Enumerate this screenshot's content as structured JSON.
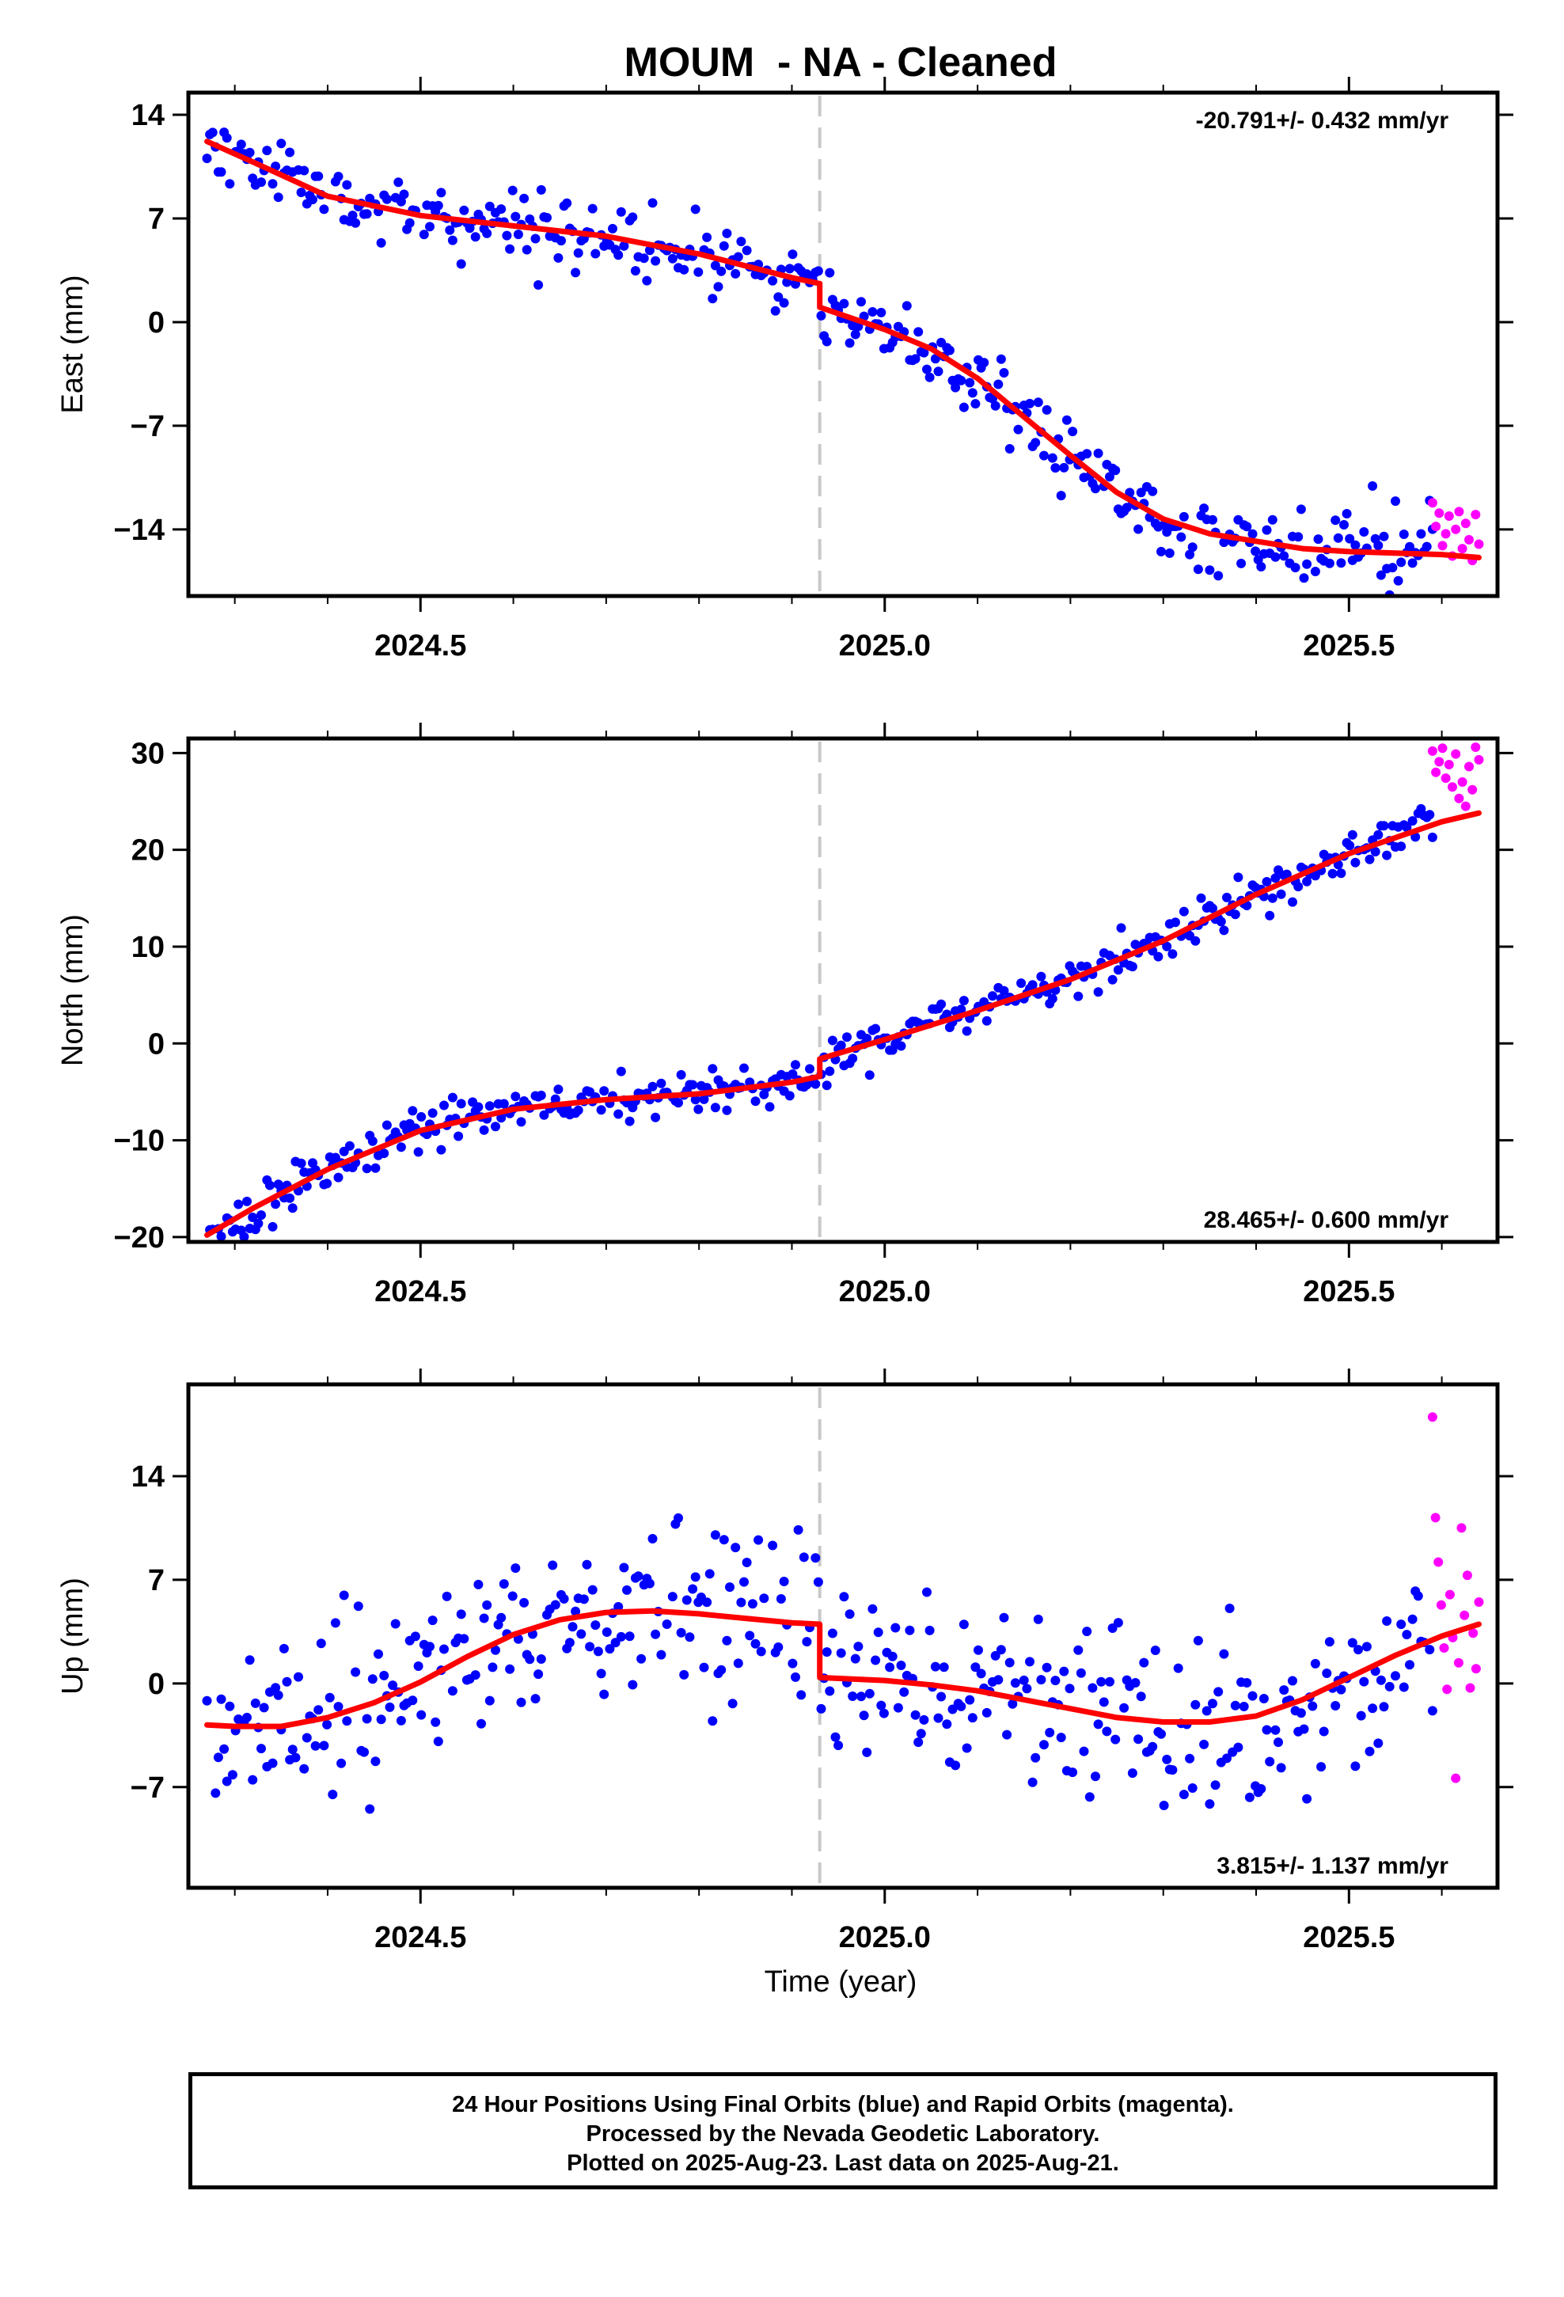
{
  "title": "MOUM  - NA - Cleaned",
  "colors": {
    "final": "#0000ff",
    "rapid": "#ff00ff",
    "model": "#ff0000",
    "event": "#c8c8c8"
  },
  "xlabel": "Time (year)",
  "footer": {
    "line1": "24 Hour Positions Using Final Orbits (blue) and Rapid Orbits (magenta).",
    "line2": "Processed by the Nevada Geodetic Laboratory.",
    "line3": "Plotted on 2025-Aug-23. Last data on 2025-Aug-21."
  },
  "chart_data": [
    {
      "type": "scatter",
      "component": "east",
      "ylabel": "East (mm)",
      "xlim": [
        2024.25,
        2025.66
      ],
      "ylim": [
        -18.5,
        15.5
      ],
      "xticks": [
        2024.5,
        2025.0,
        2025.5
      ],
      "xtick_labels": [
        "2024.5",
        "2025.0",
        "2025.5"
      ],
      "yticks": [
        14,
        7,
        0,
        -7,
        -14
      ],
      "ytick_labels": [
        "14",
        "7",
        "0",
        "−7",
        "−14"
      ],
      "rate_label": "-20.791+/- 0.432 mm/yr",
      "rate_position": "top-right",
      "event_x": 2024.93,
      "final_x_range": [
        2024.27,
        2025.59
      ],
      "rapid_x_range": [
        2025.59,
        2025.64
      ],
      "model": {
        "x": [
          2024.27,
          2024.32,
          2024.4,
          2024.5,
          2024.6,
          2024.7,
          2024.8,
          2024.9,
          2024.93,
          2024.93,
          2025.0,
          2025.05,
          2025.1,
          2025.15,
          2025.2,
          2025.25,
          2025.3,
          2025.35,
          2025.4,
          2025.45,
          2025.5,
          2025.55,
          2025.6,
          2025.64
        ],
        "y": [
          12.2,
          10.8,
          8.5,
          7.2,
          6.5,
          5.8,
          4.6,
          3.0,
          2.6,
          1.0,
          -0.5,
          -1.8,
          -3.8,
          -6.4,
          -9.0,
          -11.5,
          -13.3,
          -14.3,
          -14.8,
          -15.3,
          -15.5,
          -15.6,
          -15.7,
          -15.9
        ]
      },
      "final_sigma": 1.2,
      "rapid_values": [
        -12.2,
        -13.8,
        -12.9,
        -15.1,
        -14.3,
        -13.1,
        -15.8,
        -14.0,
        -12.8,
        -15.3,
        -13.6,
        -14.7,
        -16.1,
        -13.0,
        -15.0
      ],
      "seed": 11
    },
    {
      "type": "scatter",
      "component": "north",
      "ylabel": "North (mm)",
      "xlim": [
        2024.25,
        2025.66
      ],
      "ylim": [
        -20.5,
        31.5
      ],
      "xticks": [
        2024.5,
        2025.0,
        2025.5
      ],
      "xtick_labels": [
        "2024.5",
        "2025.0",
        "2025.5"
      ],
      "yticks": [
        30,
        20,
        10,
        0,
        -10,
        -20
      ],
      "ytick_labels": [
        "30",
        "20",
        "10",
        "0",
        "−10",
        "−20"
      ],
      "rate_label": "28.465+/- 0.600 mm/yr",
      "rate_position": "bottom-right",
      "event_x": 2024.93,
      "final_x_range": [
        2024.27,
        2025.59
      ],
      "rapid_x_range": [
        2025.59,
        2025.64
      ],
      "model": {
        "x": [
          2024.27,
          2024.32,
          2024.4,
          2024.5,
          2024.6,
          2024.7,
          2024.8,
          2024.9,
          2024.93,
          2024.93,
          2025.0,
          2025.1,
          2025.2,
          2025.3,
          2025.4,
          2025.5,
          2025.6,
          2025.64
        ],
        "y": [
          -19.8,
          -17.0,
          -13.0,
          -9.0,
          -6.8,
          -5.8,
          -5.2,
          -4.0,
          -3.4,
          -1.6,
          0.4,
          3.4,
          6.6,
          10.6,
          15.4,
          19.6,
          22.9,
          23.8
        ]
      },
      "final_sigma": 1.1,
      "rapid_values": [
        30.2,
        28.0,
        29.1,
        30.5,
        27.4,
        28.8,
        26.5,
        29.9,
        25.3,
        27.0,
        24.5,
        28.6,
        26.2,
        30.6,
        29.3
      ],
      "seed": 23
    },
    {
      "type": "scatter",
      "component": "up",
      "ylabel": "Up (mm)",
      "xlim": [
        2024.25,
        2025.66
      ],
      "ylim": [
        -13.8,
        20.2
      ],
      "xticks": [
        2024.5,
        2025.0,
        2025.5
      ],
      "xtick_labels": [
        "2024.5",
        "2025.0",
        "2025.5"
      ],
      "yticks": [
        14,
        7,
        0,
        -7
      ],
      "ytick_labels": [
        "14",
        "7",
        "0",
        "−7"
      ],
      "rate_label": "3.815+/- 1.137 mm/yr",
      "rate_position": "bottom-right",
      "event_x": 2024.93,
      "final_x_range": [
        2024.27,
        2025.59
      ],
      "rapid_x_range": [
        2025.59,
        2025.64
      ],
      "model": {
        "x": [
          2024.27,
          2024.3,
          2024.35,
          2024.4,
          2024.45,
          2024.5,
          2024.55,
          2024.6,
          2024.65,
          2024.7,
          2024.75,
          2024.8,
          2024.85,
          2024.9,
          2024.93,
          2024.93,
          2025.0,
          2025.05,
          2025.1,
          2025.15,
          2025.2,
          2025.25,
          2025.3,
          2025.35,
          2025.4,
          2025.45,
          2025.5,
          2025.55,
          2025.6,
          2025.64
        ],
        "y": [
          -2.8,
          -2.9,
          -2.9,
          -2.3,
          -1.3,
          0.1,
          1.8,
          3.3,
          4.3,
          4.8,
          4.9,
          4.7,
          4.4,
          4.1,
          4.0,
          0.4,
          0.2,
          -0.1,
          -0.5,
          -1.1,
          -1.7,
          -2.3,
          -2.6,
          -2.6,
          -2.2,
          -1.1,
          0.4,
          1.9,
          3.2,
          4.0
        ]
      },
      "final_sigma": 3.0,
      "rapid_values": [
        18.0,
        11.2,
        8.2,
        5.3,
        2.4,
        -0.4,
        6.0,
        3.1,
        -6.4,
        1.4,
        10.5,
        4.6,
        7.3,
        -0.3,
        3.4,
        1.0,
        5.5
      ],
      "seed": 37
    }
  ]
}
